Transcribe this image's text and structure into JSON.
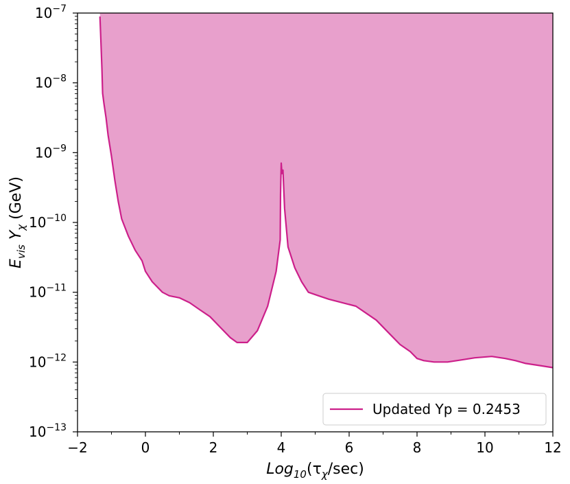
{
  "chart_data": {
    "type": "area",
    "title": "",
    "xlabel_base": "Log",
    "xlabel_sub": "10",
    "xlabel_paren_open": "(τ",
    "xlabel_chi": "χ",
    "xlabel_tail": "/sec)",
    "ylabel_E": "E",
    "ylabel_vis": "vis",
    "ylabel_Y": " Y",
    "ylabel_chi": "χ",
    "ylabel_unit": " (GeV)",
    "xlim": [
      -2,
      12
    ],
    "ylim_exp": [
      -13,
      -7
    ],
    "log_y": true,
    "grid": false,
    "x_ticks": [
      {
        "value": -2,
        "label": "−2"
      },
      {
        "value": 0,
        "label": "0"
      },
      {
        "value": 2,
        "label": "2"
      },
      {
        "value": 4,
        "label": "4"
      },
      {
        "value": 6,
        "label": "6"
      },
      {
        "value": 8,
        "label": "8"
      },
      {
        "value": 10,
        "label": "10"
      },
      {
        "value": 12,
        "label": "12"
      }
    ],
    "y_ticks": [
      {
        "exp": -13,
        "base": "10",
        "sup": "−13"
      },
      {
        "exp": -12,
        "base": "10",
        "sup": "−12"
      },
      {
        "exp": -11,
        "base": "10",
        "sup": "−11"
      },
      {
        "exp": -10,
        "base": "10",
        "sup": "−10"
      },
      {
        "exp": -9,
        "base": "10",
        "sup": "−9"
      },
      {
        "exp": -8,
        "base": "10",
        "sup": "−8"
      },
      {
        "exp": -7,
        "base": "10",
        "sup": "−7"
      }
    ],
    "legend_placement": "lower-right",
    "series": [
      {
        "name": "Updated Yp = 0.2453",
        "line_color": "#cc1f8a",
        "fill_color": "#e8a0cc",
        "x": [
          -1.34,
          -1.32,
          -1.28,
          -1.26,
          -1.22,
          -1.16,
          -1.1,
          -1.0,
          -0.9,
          -0.8,
          -0.7,
          -0.5,
          -0.3,
          -0.1,
          0.0,
          0.2,
          0.5,
          0.7,
          1.0,
          1.3,
          1.6,
          1.9,
          2.2,
          2.5,
          2.7,
          3.0,
          3.3,
          3.6,
          3.85,
          3.97,
          3.98,
          4.0,
          4.02,
          4.05,
          4.1,
          4.2,
          4.4,
          4.6,
          4.8,
          5.1,
          5.4,
          5.8,
          6.2,
          6.5,
          6.8,
          7.2,
          7.5,
          7.8,
          8.0,
          8.2,
          8.5,
          8.9,
          9.3,
          9.7,
          10.2,
          10.6,
          10.9,
          11.2,
          11.6,
          12.0
        ],
        "y_exp": [
          -7.05,
          -7.3,
          -7.8,
          -8.15,
          -8.3,
          -8.5,
          -8.75,
          -9.05,
          -9.4,
          -9.7,
          -9.95,
          -10.2,
          -10.4,
          -10.55,
          -10.7,
          -10.85,
          -11.0,
          -11.05,
          -11.08,
          -11.15,
          -11.25,
          -11.35,
          -11.5,
          -11.65,
          -11.72,
          -11.72,
          -11.55,
          -11.2,
          -10.7,
          -10.25,
          -9.6,
          -9.15,
          -9.3,
          -9.25,
          -9.8,
          -10.35,
          -10.65,
          -10.85,
          -11.0,
          -11.05,
          -11.1,
          -11.15,
          -11.2,
          -11.3,
          -11.4,
          -11.6,
          -11.75,
          -11.85,
          -11.95,
          -11.98,
          -12.0,
          -12.0,
          -11.97,
          -11.94,
          -11.92,
          -11.95,
          -11.98,
          -12.02,
          -12.05,
          -12.08
        ]
      }
    ]
  }
}
